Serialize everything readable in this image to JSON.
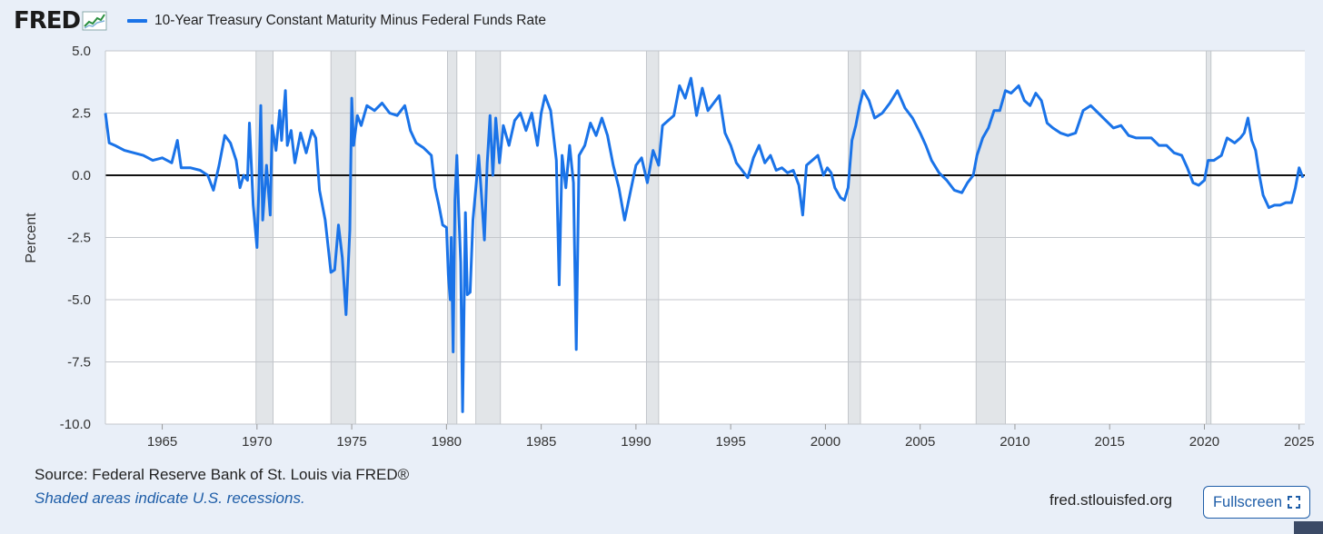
{
  "logo": {
    "text": "FRED",
    "icon": "fred-chart-icon"
  },
  "legend": {
    "label": "10-Year Treasury Constant Maturity Minus Federal Funds Rate",
    "color": "#1a73e8"
  },
  "footer": {
    "source": "Source: Federal Reserve Bank of St. Louis via FRED®",
    "note": "Shaded areas indicate U.S. recessions.",
    "site": "fred.stlouisfed.org",
    "fullscreen_label": "Fullscreen",
    "fullscreen_icon": "fullscreen-icon"
  },
  "colors": {
    "series": "#1a73e8",
    "recession": "#e2e5e8",
    "zero_line": "#111111",
    "background": "#e9eff8",
    "link": "#1f5ea8"
  },
  "chart_data": {
    "type": "line",
    "ylabel": "Percent",
    "xlabel": "",
    "ylim": [
      -10,
      5
    ],
    "xlim": [
      1962.0,
      2025.3
    ],
    "yticks": [
      "5.0",
      "2.5",
      "0.0",
      "-2.5",
      "-5.0",
      "-7.5",
      "-10.0"
    ],
    "ytick_values": [
      5,
      2.5,
      0,
      -2.5,
      -5,
      -7.5,
      -10
    ],
    "xticks": [
      "1965",
      "1970",
      "1975",
      "1980",
      "1985",
      "1990",
      "1995",
      "2000",
      "2005",
      "2010",
      "2015",
      "2020",
      "2025"
    ],
    "xtick_values": [
      1965,
      1970,
      1975,
      1980,
      1985,
      1990,
      1995,
      2000,
      2005,
      2010,
      2015,
      2020,
      2025
    ],
    "grid": true,
    "zero_line": 0,
    "recessions": [
      [
        1969.95,
        1970.85
      ],
      [
        1973.9,
        1975.2
      ],
      [
        1980.05,
        1980.55
      ],
      [
        1981.55,
        1982.85
      ],
      [
        1990.55,
        1991.2
      ],
      [
        2001.2,
        2001.85
      ],
      [
        2007.95,
        2009.5
      ],
      [
        2020.1,
        2020.35
      ]
    ],
    "series": [
      {
        "name": "10-Year Treasury Constant Maturity Minus Federal Funds Rate",
        "points": [
          [
            1962.0,
            2.5
          ],
          [
            1962.2,
            1.3
          ],
          [
            1962.5,
            1.2
          ],
          [
            1963.0,
            1.0
          ],
          [
            1963.5,
            0.9
          ],
          [
            1964.0,
            0.8
          ],
          [
            1964.5,
            0.6
          ],
          [
            1965.0,
            0.7
          ],
          [
            1965.5,
            0.5
          ],
          [
            1965.8,
            1.4
          ],
          [
            1966.0,
            0.3
          ],
          [
            1966.5,
            0.3
          ],
          [
            1967.0,
            0.2
          ],
          [
            1967.4,
            0.0
          ],
          [
            1967.7,
            -0.6
          ],
          [
            1968.0,
            0.4
          ],
          [
            1968.3,
            1.6
          ],
          [
            1968.6,
            1.3
          ],
          [
            1968.9,
            0.6
          ],
          [
            1969.1,
            -0.5
          ],
          [
            1969.3,
            0.0
          ],
          [
            1969.5,
            -0.2
          ],
          [
            1969.6,
            2.1
          ],
          [
            1969.8,
            -1.2
          ],
          [
            1970.0,
            -2.9
          ],
          [
            1970.1,
            -0.5
          ],
          [
            1970.2,
            2.8
          ],
          [
            1970.3,
            -1.8
          ],
          [
            1970.5,
            0.4
          ],
          [
            1970.7,
            -1.6
          ],
          [
            1970.8,
            2.0
          ],
          [
            1971.0,
            1.0
          ],
          [
            1971.2,
            2.6
          ],
          [
            1971.3,
            1.4
          ],
          [
            1971.5,
            3.4
          ],
          [
            1971.6,
            1.2
          ],
          [
            1971.8,
            1.8
          ],
          [
            1972.0,
            0.5
          ],
          [
            1972.3,
            1.7
          ],
          [
            1972.6,
            0.9
          ],
          [
            1972.9,
            1.8
          ],
          [
            1973.1,
            1.5
          ],
          [
            1973.3,
            -0.6
          ],
          [
            1973.6,
            -1.8
          ],
          [
            1973.9,
            -3.9
          ],
          [
            1974.1,
            -3.8
          ],
          [
            1974.3,
            -2.0
          ],
          [
            1974.5,
            -3.3
          ],
          [
            1974.7,
            -5.6
          ],
          [
            1974.9,
            -2.2
          ],
          [
            1975.0,
            3.1
          ],
          [
            1975.1,
            1.2
          ],
          [
            1975.3,
            2.4
          ],
          [
            1975.5,
            2.0
          ],
          [
            1975.8,
            2.8
          ],
          [
            1976.2,
            2.6
          ],
          [
            1976.6,
            2.9
          ],
          [
            1977.0,
            2.5
          ],
          [
            1977.4,
            2.4
          ],
          [
            1977.8,
            2.8
          ],
          [
            1978.1,
            1.8
          ],
          [
            1978.4,
            1.3
          ],
          [
            1978.8,
            1.1
          ],
          [
            1979.2,
            0.8
          ],
          [
            1979.4,
            -0.5
          ],
          [
            1979.6,
            -1.2
          ],
          [
            1979.8,
            -2.0
          ],
          [
            1980.0,
            -2.1
          ],
          [
            1980.1,
            -4.0
          ],
          [
            1980.2,
            -5.0
          ],
          [
            1980.25,
            -2.5
          ],
          [
            1980.35,
            -7.1
          ],
          [
            1980.45,
            -1.0
          ],
          [
            1980.55,
            0.8
          ],
          [
            1980.65,
            -1.5
          ],
          [
            1980.75,
            -3.5
          ],
          [
            1980.85,
            -9.5
          ],
          [
            1981.0,
            -1.5
          ],
          [
            1981.1,
            -4.8
          ],
          [
            1981.25,
            -4.7
          ],
          [
            1981.4,
            -1.8
          ],
          [
            1981.55,
            -0.5
          ],
          [
            1981.7,
            0.8
          ],
          [
            1981.85,
            -0.8
          ],
          [
            1982.0,
            -2.6
          ],
          [
            1982.15,
            0.5
          ],
          [
            1982.3,
            2.4
          ],
          [
            1982.45,
            0.0
          ],
          [
            1982.6,
            2.3
          ],
          [
            1982.8,
            0.5
          ],
          [
            1983.0,
            2.0
          ],
          [
            1983.3,
            1.2
          ],
          [
            1983.6,
            2.2
          ],
          [
            1983.9,
            2.5
          ],
          [
            1984.2,
            1.8
          ],
          [
            1984.5,
            2.5
          ],
          [
            1984.8,
            1.2
          ],
          [
            1985.0,
            2.5
          ],
          [
            1985.2,
            3.2
          ],
          [
            1985.5,
            2.6
          ],
          [
            1985.8,
            0.6
          ],
          [
            1985.95,
            -4.4
          ],
          [
            1986.1,
            0.8
          ],
          [
            1986.3,
            -0.5
          ],
          [
            1986.5,
            1.2
          ],
          [
            1986.7,
            -0.3
          ],
          [
            1986.85,
            -7.0
          ],
          [
            1987.0,
            0.8
          ],
          [
            1987.3,
            1.2
          ],
          [
            1987.6,
            2.1
          ],
          [
            1987.9,
            1.6
          ],
          [
            1988.2,
            2.3
          ],
          [
            1988.5,
            1.6
          ],
          [
            1988.8,
            0.4
          ],
          [
            1989.1,
            -0.5
          ],
          [
            1989.4,
            -1.8
          ],
          [
            1989.7,
            -0.7
          ],
          [
            1990.0,
            0.4
          ],
          [
            1990.3,
            0.7
          ],
          [
            1990.6,
            -0.3
          ],
          [
            1990.9,
            1.0
          ],
          [
            1991.2,
            0.4
          ],
          [
            1991.4,
            2.0
          ],
          [
            1991.7,
            2.2
          ],
          [
            1992.0,
            2.4
          ],
          [
            1992.3,
            3.6
          ],
          [
            1992.6,
            3.1
          ],
          [
            1992.9,
            3.9
          ],
          [
            1993.2,
            2.4
          ],
          [
            1993.5,
            3.5
          ],
          [
            1993.8,
            2.6
          ],
          [
            1994.1,
            2.9
          ],
          [
            1994.4,
            3.2
          ],
          [
            1994.7,
            1.7
          ],
          [
            1995.0,
            1.2
          ],
          [
            1995.3,
            0.5
          ],
          [
            1995.6,
            0.2
          ],
          [
            1995.9,
            -0.1
          ],
          [
            1996.2,
            0.7
          ],
          [
            1996.5,
            1.2
          ],
          [
            1996.8,
            0.5
          ],
          [
            1997.1,
            0.8
          ],
          [
            1997.4,
            0.2
          ],
          [
            1997.7,
            0.3
          ],
          [
            1998.0,
            0.1
          ],
          [
            1998.3,
            0.2
          ],
          [
            1998.6,
            -0.4
          ],
          [
            1998.8,
            -1.6
          ],
          [
            1999.0,
            0.4
          ],
          [
            1999.3,
            0.6
          ],
          [
            1999.6,
            0.8
          ],
          [
            1999.9,
            0.0
          ],
          [
            2000.1,
            0.3
          ],
          [
            2000.3,
            0.1
          ],
          [
            2000.5,
            -0.5
          ],
          [
            2000.8,
            -0.9
          ],
          [
            2001.0,
            -1.0
          ],
          [
            2001.2,
            -0.5
          ],
          [
            2001.4,
            1.4
          ],
          [
            2001.6,
            2.0
          ],
          [
            2001.8,
            2.8
          ],
          [
            2002.0,
            3.4
          ],
          [
            2002.3,
            3.0
          ],
          [
            2002.6,
            2.3
          ],
          [
            2003.0,
            2.5
          ],
          [
            2003.4,
            2.9
          ],
          [
            2003.8,
            3.4
          ],
          [
            2004.2,
            2.7
          ],
          [
            2004.6,
            2.3
          ],
          [
            2005.0,
            1.7
          ],
          [
            2005.3,
            1.2
          ],
          [
            2005.6,
            0.6
          ],
          [
            2006.0,
            0.1
          ],
          [
            2006.4,
            -0.2
          ],
          [
            2006.8,
            -0.6
          ],
          [
            2007.2,
            -0.7
          ],
          [
            2007.5,
            -0.3
          ],
          [
            2007.8,
            0.0
          ],
          [
            2008.0,
            0.8
          ],
          [
            2008.3,
            1.5
          ],
          [
            2008.6,
            1.9
          ],
          [
            2008.9,
            2.6
          ],
          [
            2009.2,
            2.6
          ],
          [
            2009.5,
            3.4
          ],
          [
            2009.8,
            3.3
          ],
          [
            2010.2,
            3.6
          ],
          [
            2010.5,
            3.0
          ],
          [
            2010.8,
            2.8
          ],
          [
            2011.1,
            3.3
          ],
          [
            2011.4,
            3.0
          ],
          [
            2011.7,
            2.1
          ],
          [
            2012.0,
            1.9
          ],
          [
            2012.4,
            1.7
          ],
          [
            2012.8,
            1.6
          ],
          [
            2013.2,
            1.7
          ],
          [
            2013.6,
            2.6
          ],
          [
            2014.0,
            2.8
          ],
          [
            2014.4,
            2.5
          ],
          [
            2014.8,
            2.2
          ],
          [
            2015.2,
            1.9
          ],
          [
            2015.6,
            2.0
          ],
          [
            2016.0,
            1.6
          ],
          [
            2016.4,
            1.5
          ],
          [
            2016.8,
            1.5
          ],
          [
            2017.2,
            1.5
          ],
          [
            2017.6,
            1.2
          ],
          [
            2018.0,
            1.2
          ],
          [
            2018.4,
            0.9
          ],
          [
            2018.8,
            0.8
          ],
          [
            2019.1,
            0.3
          ],
          [
            2019.4,
            -0.3
          ],
          [
            2019.7,
            -0.4
          ],
          [
            2020.0,
            -0.2
          ],
          [
            2020.2,
            0.6
          ],
          [
            2020.5,
            0.6
          ],
          [
            2020.9,
            0.8
          ],
          [
            2021.2,
            1.5
          ],
          [
            2021.6,
            1.3
          ],
          [
            2021.9,
            1.5
          ],
          [
            2022.1,
            1.7
          ],
          [
            2022.3,
            2.3
          ],
          [
            2022.5,
            1.4
          ],
          [
            2022.7,
            1.0
          ],
          [
            2022.9,
            0.0
          ],
          [
            2023.1,
            -0.8
          ],
          [
            2023.4,
            -1.3
          ],
          [
            2023.7,
            -1.2
          ],
          [
            2024.0,
            -1.2
          ],
          [
            2024.3,
            -1.1
          ],
          [
            2024.6,
            -1.1
          ],
          [
            2024.8,
            -0.5
          ],
          [
            2025.0,
            0.3
          ],
          [
            2025.2,
            -0.1
          ]
        ]
      }
    ]
  }
}
